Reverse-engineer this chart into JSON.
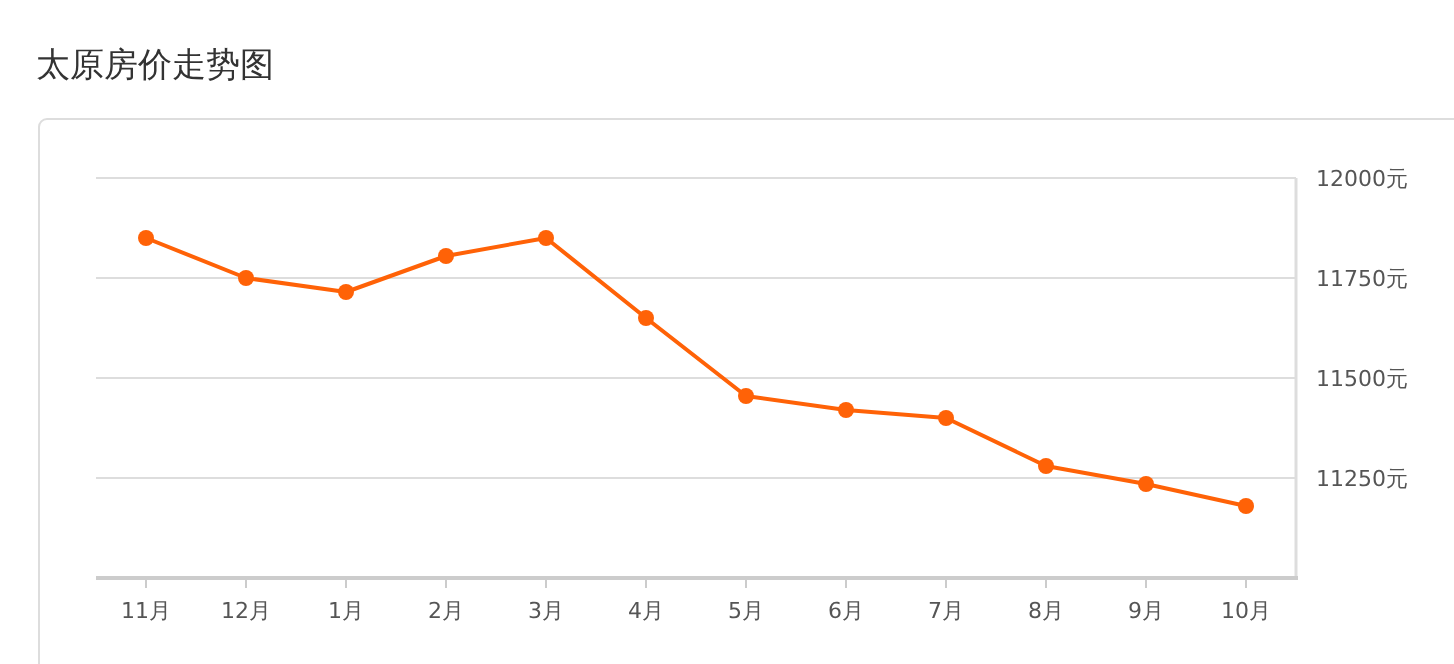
{
  "chart_data": {
    "type": "line",
    "title": "太原房价走势图",
    "categories": [
      "11月",
      "12月",
      "1月",
      "2月",
      "3月",
      "4月",
      "5月",
      "6月",
      "7月",
      "8月",
      "9月",
      "10月"
    ],
    "series": [
      {
        "color": "#ff6207",
        "values": [
          11850,
          11750,
          11715,
          11805,
          11850,
          11650,
          11455,
          11420,
          11400,
          11280,
          11235,
          11180
        ]
      }
    ],
    "ylim": [
      11000,
      12000
    ],
    "yticks": [
      {
        "value": 11250,
        "label": "11250元"
      },
      {
        "value": 11500,
        "label": "11500元"
      },
      {
        "value": 11750,
        "label": "11750元"
      },
      {
        "value": 12000,
        "label": "12000元"
      }
    ],
    "grid": "y",
    "marker": "circle",
    "line_style": "solid"
  }
}
